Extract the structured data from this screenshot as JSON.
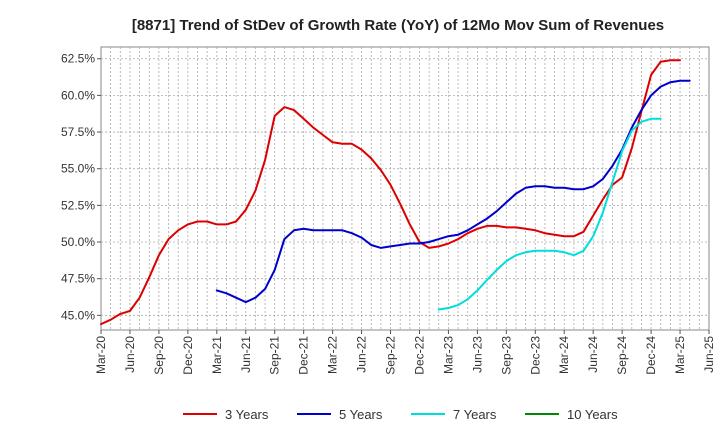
{
  "chart_data": {
    "type": "line",
    "title": "[8871]  Trend of StDev of Growth Rate (YoY) of 12Mo Mov Sum of Revenues",
    "xlabel": "",
    "ylabel": "",
    "ylim": [
      44.0,
      63.3
    ],
    "x_range": [
      0,
      63
    ],
    "y_ticks": [
      {
        "value": 45.0,
        "label": "45.0%"
      },
      {
        "value": 47.5,
        "label": "47.5%"
      },
      {
        "value": 50.0,
        "label": "50.0%"
      },
      {
        "value": 52.5,
        "label": "52.5%"
      },
      {
        "value": 55.0,
        "label": "55.0%"
      },
      {
        "value": 57.5,
        "label": "57.5%"
      },
      {
        "value": 60.0,
        "label": "60.0%"
      },
      {
        "value": 62.5,
        "label": "62.5%"
      }
    ],
    "x_ticks": [
      {
        "index": 0,
        "label": "Mar-20"
      },
      {
        "index": 3,
        "label": "Jun-20"
      },
      {
        "index": 6,
        "label": "Sep-20"
      },
      {
        "index": 9,
        "label": "Dec-20"
      },
      {
        "index": 12,
        "label": "Mar-21"
      },
      {
        "index": 15,
        "label": "Jun-21"
      },
      {
        "index": 18,
        "label": "Sep-21"
      },
      {
        "index": 21,
        "label": "Dec-21"
      },
      {
        "index": 24,
        "label": "Mar-22"
      },
      {
        "index": 27,
        "label": "Jun-22"
      },
      {
        "index": 30,
        "label": "Sep-22"
      },
      {
        "index": 33,
        "label": "Dec-22"
      },
      {
        "index": 36,
        "label": "Mar-23"
      },
      {
        "index": 39,
        "label": "Jun-23"
      },
      {
        "index": 42,
        "label": "Sep-23"
      },
      {
        "index": 45,
        "label": "Dec-23"
      },
      {
        "index": 48,
        "label": "Mar-24"
      },
      {
        "index": 51,
        "label": "Jun-24"
      },
      {
        "index": 54,
        "label": "Sep-24"
      },
      {
        "index": 57,
        "label": "Dec-24"
      },
      {
        "index": 60,
        "label": "Mar-25"
      },
      {
        "index": 63,
        "label": "Jun-25"
      }
    ],
    "grid": true,
    "legend_position": "bottom",
    "series": [
      {
        "name": "3 Years",
        "color": "#dd0000",
        "start_index": 0,
        "values": [
          44.4,
          44.7,
          45.1,
          45.3,
          46.2,
          47.6,
          49.1,
          50.2,
          50.8,
          51.2,
          51.4,
          51.4,
          51.2,
          51.2,
          51.4,
          52.2,
          53.5,
          55.6,
          58.6,
          59.2,
          59.0,
          58.4,
          57.8,
          57.3,
          56.8,
          56.7,
          56.7,
          56.3,
          55.7,
          54.9,
          53.9,
          52.6,
          51.2,
          50.0,
          49.6,
          49.7,
          49.9,
          50.2,
          50.6,
          50.9,
          51.1,
          51.1,
          51.0,
          51.0,
          50.9,
          50.8,
          50.6,
          50.5,
          50.4,
          50.4,
          50.7,
          51.8,
          52.9,
          53.9,
          54.4,
          56.4,
          58.9,
          61.4,
          62.3,
          62.4,
          62.4
        ]
      },
      {
        "name": "5 Years",
        "color": "#0000cc",
        "start_index": 12,
        "values": [
          46.7,
          46.5,
          46.2,
          45.9,
          46.2,
          46.8,
          48.1,
          50.2,
          50.8,
          50.9,
          50.8,
          50.8,
          50.8,
          50.8,
          50.6,
          50.3,
          49.8,
          49.6,
          49.7,
          49.8,
          49.9,
          49.9,
          50.0,
          50.2,
          50.4,
          50.5,
          50.8,
          51.2,
          51.6,
          52.1,
          52.7,
          53.3,
          53.7,
          53.8,
          53.8,
          53.7,
          53.7,
          53.6,
          53.6,
          53.8,
          54.3,
          55.2,
          56.3,
          57.8,
          59.0,
          60.0,
          60.6,
          60.9,
          61.0,
          61.0
        ]
      },
      {
        "name": "7 Years",
        "color": "#00dddd",
        "start_index": 35,
        "values": [
          45.4,
          45.5,
          45.7,
          46.1,
          46.7,
          47.4,
          48.1,
          48.7,
          49.1,
          49.3,
          49.4,
          49.4,
          49.4,
          49.3,
          49.1,
          49.4,
          50.4,
          52.0,
          54.1,
          56.2,
          57.6,
          58.2,
          58.4,
          58.4
        ]
      },
      {
        "name": "10 Years",
        "color": "#008800",
        "start_index": 0,
        "values": []
      }
    ]
  }
}
